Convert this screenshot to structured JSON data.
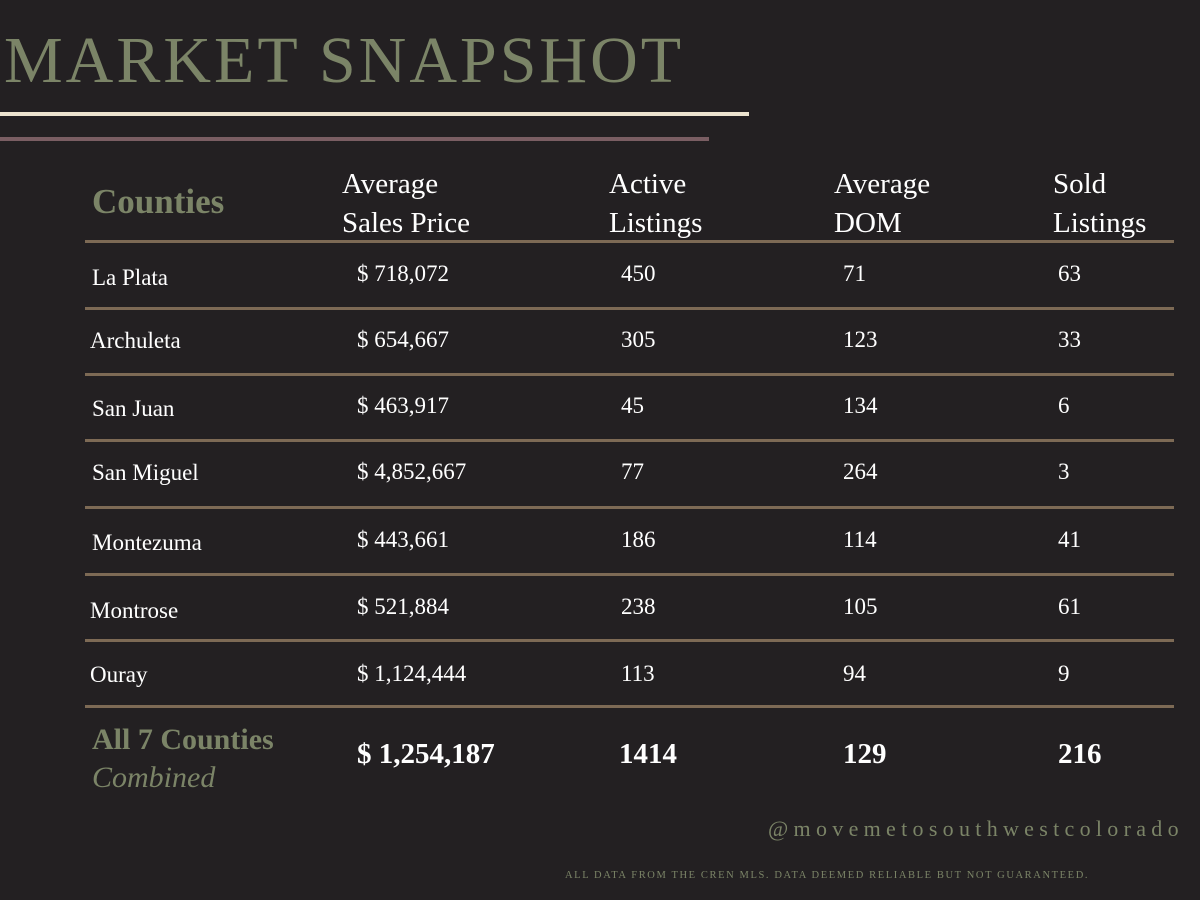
{
  "title": "MARKET SNAPSHOT",
  "headers": {
    "counties": "Counties",
    "avg_price": [
      "Average",
      "Sales Price"
    ],
    "active": [
      "Active",
      "Listings"
    ],
    "dom": [
      "Average",
      "DOM"
    ],
    "sold": [
      "Sold",
      "Listings"
    ]
  },
  "rows": [
    {
      "county": "La Plata",
      "price": "$ 718,072",
      "active": "450",
      "dom": "71",
      "sold": "63"
    },
    {
      "county": "Archuleta",
      "price": "$ 654,667",
      "active": "305",
      "dom": "123",
      "sold": "33"
    },
    {
      "county": "San Juan",
      "price": "$ 463,917",
      "active": "45",
      "dom": "134",
      "sold": "6"
    },
    {
      "county": "San Miguel",
      "price": "$ 4,852,667",
      "active": "77",
      "dom": "264",
      "sold": "3"
    },
    {
      "county": "Montezuma",
      "price": "$ 443,661",
      "active": "186",
      "dom": "114",
      "sold": "41"
    },
    {
      "county": "Montrose",
      "price": "$ 521,884",
      "active": "238",
      "dom": "105",
      "sold": "61"
    },
    {
      "county": "Ouray",
      "price": "$ 1,124,444",
      "active": "113",
      "dom": "94",
      "sold": "9"
    }
  ],
  "total": {
    "label_line1": "All 7 Counties",
    "label_line2": "Combined",
    "price": "$ 1,254,187",
    "active": "1414",
    "dom": "129",
    "sold": "216"
  },
  "handle": "@movemetosouthwestcolorado",
  "disclaimer": "ALL DATA FROM THE CREN MLS. DATA DEEMED RELIABLE BUT NOT GUARANTEED.",
  "colors": {
    "background": "#232022",
    "accent_green": "#7b8467",
    "rule_cream": "#ece3cf",
    "rule_mauve": "#7a5e63",
    "row_divider": "#7d6a55"
  }
}
